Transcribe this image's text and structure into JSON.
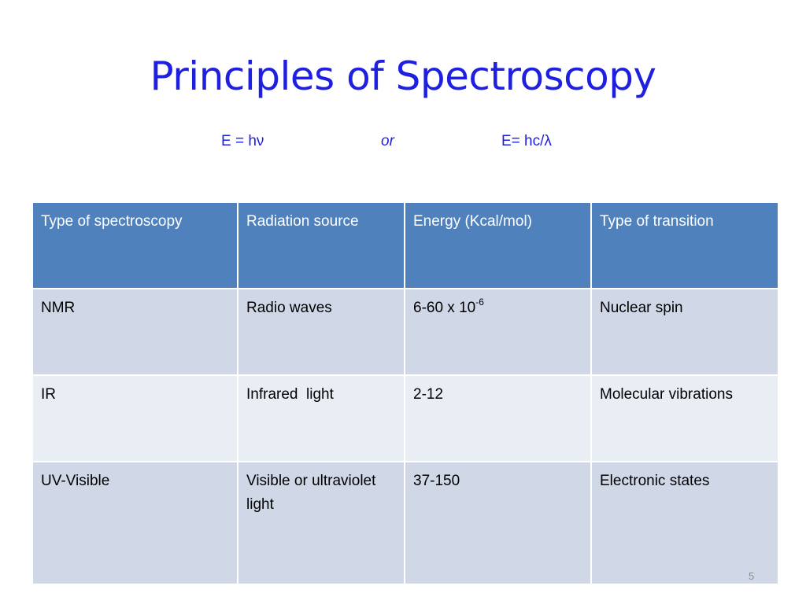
{
  "slide": {
    "title": "Principles of Spectroscopy",
    "equations": {
      "left": "E = hν",
      "middle": "or",
      "right": "E= hc/λ"
    },
    "page_number": "5"
  },
  "table": {
    "headers": [
      "Type of spectroscopy",
      "Radiation source",
      "Energy (Kcal/mol)",
      "Type of transition"
    ],
    "rows": [
      {
        "type": "NMR",
        "source": "Radio waves",
        "energy_base": "6-60 x 10",
        "energy_exp": "-6",
        "transition": "Nuclear spin"
      },
      {
        "type": "IR",
        "source": "Infrared  light",
        "energy": "2-12",
        "transition": "Molecular vibrations"
      },
      {
        "type": "UV-Visible",
        "source": "Visible or ultraviolet light",
        "energy": "37-150",
        "transition": "Electronic states"
      }
    ]
  },
  "colors": {
    "title": "#1f1fe0",
    "header_bg": "#4f81bd",
    "row_dark": "#d0d8e8",
    "row_light": "#e9edf4"
  }
}
